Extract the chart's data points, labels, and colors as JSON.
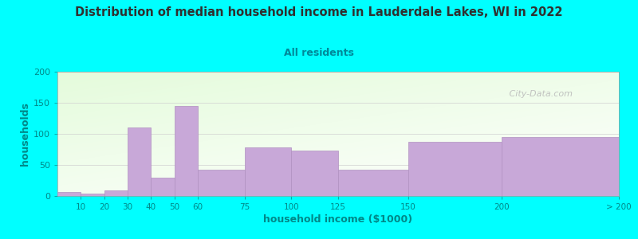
{
  "title": "Distribution of median household income in Lauderdale Lakes, WI in 2022",
  "subtitle": "All residents",
  "xlabel": "household income ($1000)",
  "ylabel": "households",
  "background_color": "#00FFFF",
  "bar_color": "#c8a8d8",
  "bar_edge_color": "#b090c0",
  "title_color": "#303030",
  "subtitle_color": "#008899",
  "axis_label_color": "#008888",
  "tick_color": "#008888",
  "watermark_text": " City-Data.com",
  "categories": [
    "10",
    "20",
    "30",
    "40",
    "50",
    "60",
    "75",
    "100",
    "125",
    "150",
    "200",
    "> 200"
  ],
  "values": [
    7,
    4,
    9,
    110,
    30,
    145,
    42,
    78,
    73,
    42,
    87,
    95
  ],
  "x_positions": [
    0,
    1,
    2,
    3,
    4,
    5,
    6,
    8,
    10,
    12,
    15,
    19,
    24
  ],
  "ylim": [
    0,
    200
  ],
  "yticks": [
    0,
    50,
    100,
    150,
    200
  ]
}
